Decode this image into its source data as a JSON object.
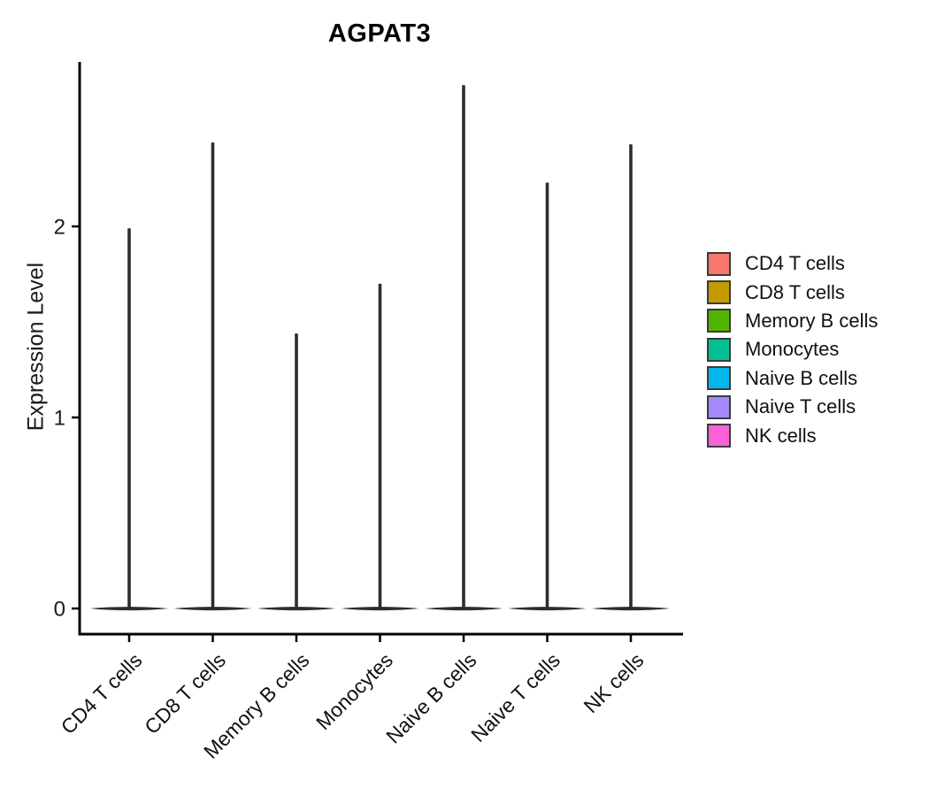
{
  "chart_data": {
    "type": "violin",
    "title": "AGPAT3",
    "ylabel": "Expression Level",
    "xlabel": "",
    "categories": [
      "CD4 T cells",
      "CD8 T cells",
      "Memory B cells",
      "Monocytes",
      "Naive B cells",
      "Naive T cells",
      "NK cells"
    ],
    "colors": [
      "#F8766D",
      "#C49A00",
      "#53B400",
      "#00C094",
      "#00B6EB",
      "#A58AFF",
      "#FB61D7"
    ],
    "max_values": [
      1.99,
      2.44,
      1.44,
      1.7,
      2.74,
      2.23,
      2.43
    ],
    "min_values": [
      0,
      0,
      0,
      0,
      0,
      0,
      0
    ],
    "distribution": "mass concentrated at 0 with a thin tail up to each max",
    "yticks": [
      0,
      1,
      2
    ],
    "ylim": [
      0,
      2.86
    ],
    "grid": false,
    "legend_position": "right",
    "violin_outline_color": "#2d2d2d",
    "axis_color": "#000000"
  }
}
